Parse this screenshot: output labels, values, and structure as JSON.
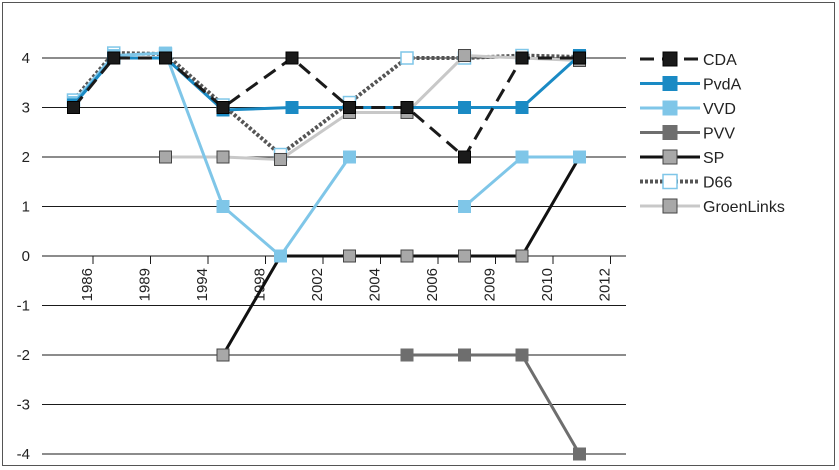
{
  "chart_data": {
    "type": "line",
    "title": "",
    "xlabel": "",
    "ylabel": "",
    "x": [
      "1986",
      "1989",
      "1994",
      "1998",
      "2002",
      "2004",
      "2006",
      "2009",
      "2010",
      "2012"
    ],
    "ylim": [
      -4,
      4
    ],
    "yticks": [
      "4",
      "3",
      "2",
      "1",
      "0",
      "-1",
      "-2",
      "-3",
      "-4"
    ],
    "grid": "horizontal",
    "legend_position": "right",
    "series": [
      {
        "name": "CDA",
        "color": "#1a1a1a",
        "style": "dashed-filled",
        "points": [
          [
            0.2,
            3
          ],
          [
            0.9,
            4
          ],
          [
            1.8,
            4
          ],
          [
            2.8,
            3
          ],
          [
            4.0,
            4
          ],
          [
            5.0,
            3
          ],
          [
            6.0,
            3
          ],
          [
            7.0,
            2
          ],
          [
            8.0,
            4
          ],
          [
            9.0,
            4
          ]
        ]
      },
      {
        "name": "PvdA",
        "color": "#1a8ac4",
        "style": "solid-filled",
        "points": [
          [
            0.2,
            3.05
          ],
          [
            0.9,
            4
          ],
          [
            1.8,
            4
          ],
          [
            2.8,
            2.95
          ],
          [
            4.0,
            3
          ],
          [
            5.0,
            3
          ],
          [
            6.0,
            3
          ],
          [
            7.0,
            3
          ],
          [
            8.0,
            3
          ],
          [
            9.0,
            4.05
          ]
        ]
      },
      {
        "name": "VVD",
        "color": "#7fc6e8",
        "style": "solid-filled",
        "points": [
          [
            0.2,
            3.1
          ],
          [
            0.9,
            4.05
          ],
          [
            1.8,
            4.1
          ],
          [
            2.8,
            1
          ],
          [
            3.8,
            0
          ],
          [
            5.0,
            2
          ],
          null,
          [
            7.0,
            1
          ],
          [
            8.0,
            2
          ],
          [
            9.0,
            2
          ]
        ]
      },
      {
        "name": "PVV",
        "color": "#6e6e6e",
        "style": "solid-filled",
        "points": [
          [
            6.0,
            -2
          ],
          [
            7.0,
            -2
          ],
          [
            8.0,
            -2
          ],
          [
            9.0,
            -4
          ]
        ]
      },
      {
        "name": "SP",
        "color": "#111111",
        "style": "solid-gray-marker",
        "points": [
          [
            2.8,
            -2
          ],
          [
            3.8,
            0
          ],
          [
            5.0,
            0
          ],
          [
            6.0,
            0
          ],
          [
            7.0,
            0
          ],
          [
            8.0,
            0
          ],
          [
            9.0,
            2
          ]
        ]
      },
      {
        "name": "D66",
        "color": "#555555",
        "style": "dotted-open",
        "points": [
          [
            0.2,
            3.15
          ],
          [
            0.9,
            4.1
          ],
          [
            1.8,
            4.08
          ],
          [
            2.8,
            3.05
          ],
          [
            3.8,
            2.05
          ],
          [
            5.0,
            3.1
          ],
          [
            6.0,
            4
          ],
          [
            7.0,
            4
          ],
          [
            8.0,
            4.05
          ],
          [
            9.0,
            4.02
          ]
        ]
      },
      {
        "name": "GroenLinks",
        "color": "#c8c8c8",
        "style": "solid-gray-marker",
        "points": [
          [
            1.8,
            2
          ],
          [
            2.8,
            2
          ],
          [
            3.8,
            1.95
          ],
          [
            5.0,
            2.9
          ],
          [
            6.0,
            2.9
          ],
          [
            7.0,
            4.05
          ],
          [
            8.0,
            4
          ],
          [
            9.0,
            3.95
          ]
        ]
      }
    ]
  }
}
